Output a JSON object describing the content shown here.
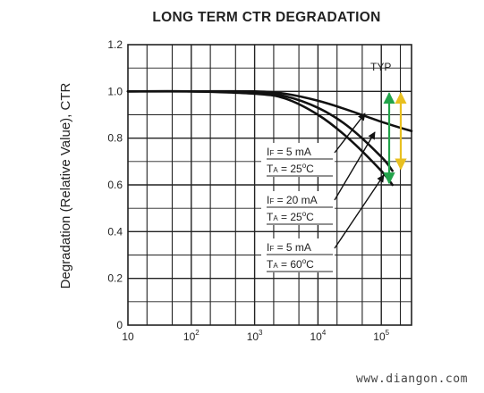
{
  "chart_data": {
    "type": "line",
    "title": "LONG TERM CTR DEGRADATION",
    "ylabel": "Degradation (Relative Value), CTR",
    "xlabel": "",
    "x_scale": "log",
    "xlim": [
      10,
      300000
    ],
    "ylim": [
      0,
      1.2
    ],
    "yticks": [
      "0",
      "0.2",
      "0.4",
      "0.6",
      "0.8",
      "1.0",
      "1.2"
    ],
    "xticks": [
      {
        "base": "10",
        "exp": ""
      },
      {
        "base": "10",
        "exp": "2"
      },
      {
        "base": "10",
        "exp": "3"
      },
      {
        "base": "10",
        "exp": "4"
      },
      {
        "base": "10",
        "exp": "5"
      }
    ],
    "grid": true,
    "series": [
      {
        "x": [
          10,
          100,
          1000,
          3000,
          10000,
          30000,
          100000,
          300000
        ],
        "y": [
          1.0,
          1.0,
          1.0,
          0.99,
          0.96,
          0.92,
          0.87,
          0.83
        ]
      },
      {
        "x": [
          10,
          100,
          1000,
          3000,
          10000,
          30000,
          100000,
          150000
        ],
        "y": [
          1.0,
          1.0,
          0.995,
          0.98,
          0.93,
          0.85,
          0.72,
          0.66
        ]
      },
      {
        "x": [
          10,
          100,
          1000,
          3000,
          10000,
          30000,
          100000,
          150000
        ],
        "y": [
          1.0,
          1.0,
          0.99,
          0.97,
          0.9,
          0.8,
          0.66,
          0.6
        ]
      }
    ],
    "annotations": [
      {
        "text": "TYP"
      },
      {
        "if_label": "I",
        "if_sub": "F",
        "if_value": " = 5 mA",
        "ta_label": "T",
        "ta_sub": "A",
        "ta_value": " = 25",
        "ta_unit": "C"
      },
      {
        "if_label": "I",
        "if_sub": "F",
        "if_value": " = 20 mA",
        "ta_label": "T",
        "ta_sub": "A",
        "ta_value": " = 25",
        "ta_unit": "C"
      },
      {
        "if_label": "I",
        "if_sub": "F",
        "if_value": " = 5 mA",
        "ta_label": "T",
        "ta_sub": "A",
        "ta_value": " = 60",
        "ta_unit": "C"
      }
    ],
    "degree_symbol": "o",
    "range_arrows": [
      {
        "color": "#22a34a",
        "y_top": 1.0,
        "y_bottom": 0.6
      },
      {
        "color": "#e8c020",
        "y_top": 1.0,
        "y_bottom": 0.66
      }
    ]
  },
  "watermark": "www.diangon.com"
}
